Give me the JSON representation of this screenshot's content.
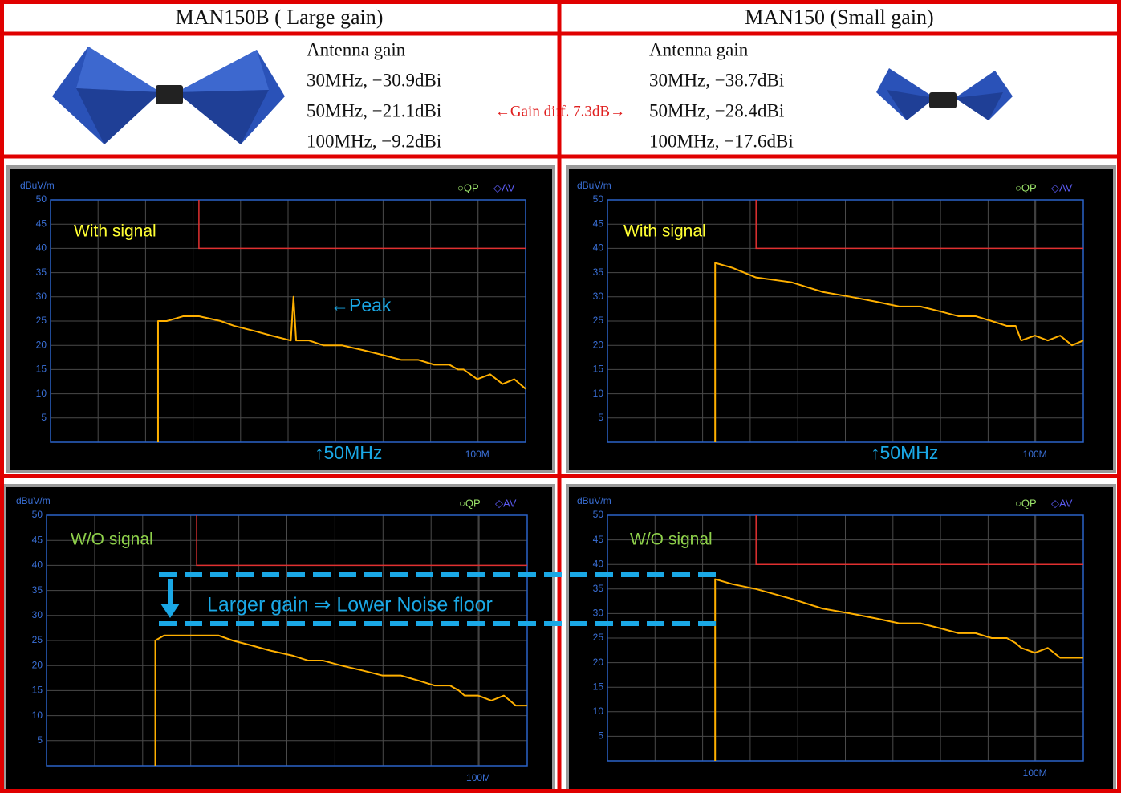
{
  "header": {
    "left_title": "MAN150B ( Large gain)",
    "right_title": "MAN150 (Small gain)"
  },
  "antennas": [
    {
      "heading": "Antenna gain",
      "lines": [
        "30MHz, −30.9dBi",
        "50MHz, −21.1dBi",
        "100MHz, −9.2dBi"
      ]
    },
    {
      "heading": "Antenna gain",
      "lines": [
        "30MHz, −38.7dBi",
        "50MHz, −28.4dBi",
        "100MHz, −17.6dBi"
      ]
    }
  ],
  "gain_diff": "←Gain diff. 7.3dB→",
  "overlay": "Larger gain ⇒ Lower Noise floor",
  "chart_data": [
    {
      "type": "line",
      "y_label": "dBuV/m",
      "log_x": true,
      "grid": true,
      "legend": [
        {
          "name": "○QP",
          "color": "#9be36a"
        },
        {
          "name": "◇AV",
          "color": "#5a5af0"
        }
      ],
      "label": "With signal",
      "label_color": "#ffff33",
      "peak_label": "←Peak",
      "marker_label": "↑50MHz",
      "xlim": [
        20,
        120
      ],
      "xticks": [
        {
          "value": 100,
          "label": "100M"
        }
      ],
      "ylim": [
        0,
        50
      ],
      "yticks": [
        5,
        10,
        15,
        20,
        25,
        30,
        35,
        40,
        45,
        50
      ],
      "limit": {
        "color": "#e03030",
        "x": [
          35,
          35,
          120
        ],
        "y": [
          50,
          40,
          40
        ]
      },
      "series": [
        {
          "color": "#ffb000",
          "x": [
            30,
            30,
            31,
            33,
            35,
            38,
            40,
            43,
            46,
            49.5,
            50,
            50.5,
            53,
            56,
            60,
            65,
            70,
            75,
            80,
            85,
            90,
            93,
            95,
            100,
            105,
            110,
            115,
            120
          ],
          "values": [
            0,
            25,
            25,
            26,
            26,
            25,
            24,
            23,
            22,
            21,
            30,
            21,
            21,
            20,
            20,
            19,
            18,
            17,
            17,
            16,
            16,
            15,
            15,
            13,
            14,
            12,
            13,
            11
          ]
        }
      ]
    },
    {
      "type": "line",
      "y_label": "dBuV/m",
      "log_x": true,
      "grid": true,
      "legend": [
        {
          "name": "○QP",
          "color": "#9be36a"
        },
        {
          "name": "◇AV",
          "color": "#5a5af0"
        }
      ],
      "label": "With signal",
      "label_color": "#ffff33",
      "marker_label": "↑50MHz",
      "xlim": [
        20,
        120
      ],
      "xticks": [
        {
          "value": 100,
          "label": "100M"
        }
      ],
      "ylim": [
        0,
        50
      ],
      "yticks": [
        5,
        10,
        15,
        20,
        25,
        30,
        35,
        40,
        45,
        50
      ],
      "limit": {
        "color": "#e03030",
        "x": [
          35,
          35,
          120
        ],
        "y": [
          50,
          40,
          40
        ]
      },
      "series": [
        {
          "color": "#ffb000",
          "x": [
            30,
            30,
            32,
            35,
            40,
            45,
            50,
            55,
            60,
            65,
            70,
            75,
            80,
            85,
            90,
            93,
            95,
            100,
            105,
            110,
            115,
            120
          ],
          "values": [
            0,
            37,
            36,
            34,
            33,
            31,
            30,
            29,
            28,
            28,
            27,
            26,
            26,
            25,
            24,
            24,
            21,
            22,
            21,
            22,
            20,
            21
          ]
        }
      ]
    },
    {
      "type": "line",
      "y_label": "dBuV/m",
      "log_x": true,
      "grid": true,
      "legend": [
        {
          "name": "○QP",
          "color": "#9be36a"
        },
        {
          "name": "◇AV",
          "color": "#5a5af0"
        }
      ],
      "label": "W/O signal",
      "label_color": "#8ed04a",
      "xlim": [
        20,
        120
      ],
      "xticks": [
        {
          "value": 100,
          "label": "100M"
        }
      ],
      "ylim": [
        0,
        50
      ],
      "yticks": [
        5,
        10,
        15,
        20,
        25,
        30,
        35,
        40,
        45,
        50
      ],
      "limit": {
        "color": "#e03030",
        "x": [
          35,
          35,
          120
        ],
        "y": [
          50,
          40,
          40
        ]
      },
      "series": [
        {
          "color": "#ffb000",
          "x": [
            30,
            30,
            31,
            33,
            35,
            38,
            40,
            43,
            46,
            50,
            53,
            56,
            60,
            65,
            70,
            75,
            80,
            85,
            90,
            93,
            95,
            100,
            105,
            110,
            115,
            120
          ],
          "values": [
            0,
            25,
            26,
            26,
            26,
            26,
            25,
            24,
            23,
            22,
            21,
            21,
            20,
            19,
            18,
            18,
            17,
            16,
            16,
            15,
            14,
            14,
            13,
            14,
            12,
            12
          ]
        }
      ]
    },
    {
      "type": "line",
      "y_label": "dBuV/m",
      "log_x": true,
      "grid": true,
      "legend": [
        {
          "name": "○QP",
          "color": "#9be36a"
        },
        {
          "name": "◇AV",
          "color": "#5a5af0"
        }
      ],
      "label": "W/O signal",
      "label_color": "#8ed04a",
      "xlim": [
        20,
        120
      ],
      "xticks": [
        {
          "value": 100,
          "label": "100M"
        }
      ],
      "ylim": [
        0,
        50
      ],
      "yticks": [
        5,
        10,
        15,
        20,
        25,
        30,
        35,
        40,
        45,
        50
      ],
      "limit": {
        "color": "#e03030",
        "x": [
          35,
          35,
          120
        ],
        "y": [
          50,
          40,
          40
        ]
      },
      "series": [
        {
          "color": "#ffb000",
          "x": [
            30,
            30,
            32,
            35,
            40,
            45,
            50,
            55,
            60,
            65,
            70,
            75,
            80,
            85,
            90,
            93,
            95,
            100,
            105,
            110,
            115,
            120
          ],
          "values": [
            0,
            37,
            36,
            35,
            33,
            31,
            30,
            29,
            28,
            28,
            27,
            26,
            26,
            25,
            25,
            24,
            23,
            22,
            23,
            21,
            21,
            21
          ]
        }
      ]
    }
  ]
}
